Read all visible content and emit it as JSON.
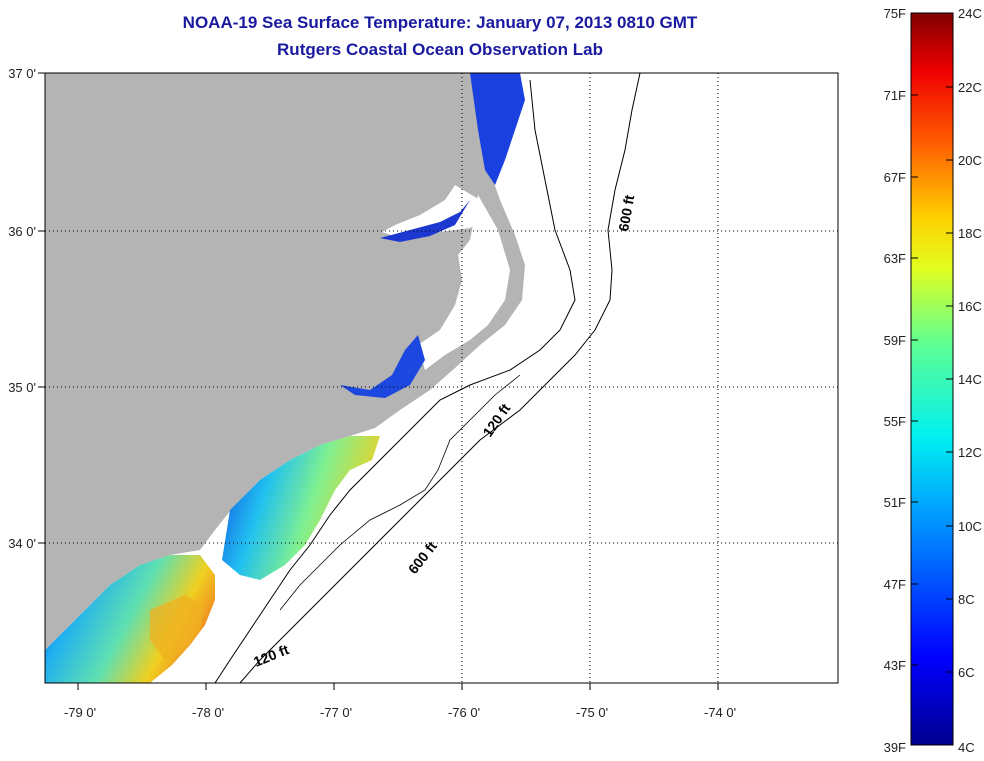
{
  "title": "NOAA-19 Sea Surface Temperature:  January 07, 2013 0810 GMT",
  "subtitle": "Rutgers Coastal Ocean Observation Lab",
  "lat_labels": [
    "37 0'",
    "36 0'",
    "35 0'",
    "34 0'"
  ],
  "lon_labels": [
    "-79 0'",
    "-78 0'",
    "-77 0'",
    "-76 0'",
    "-75 0'",
    "-74 0'"
  ],
  "isobaths": [
    "600 ft",
    "120 ft",
    "600 ft",
    "120 ft"
  ],
  "colorbar": {
    "fahrenheit": [
      "75F",
      "71F",
      "67F",
      "63F",
      "59F",
      "55F",
      "51F",
      "47F",
      "43F",
      "39F"
    ],
    "celsius": [
      "24C",
      "22C",
      "20C",
      "18C",
      "16C",
      "14C",
      "12C",
      "10C",
      "8C",
      "6C",
      "4C"
    ]
  },
  "colors": {
    "land": "#b4b4b4",
    "title": "#1a1aa0",
    "cold": "#0a1aa8",
    "mid": "#1aa0f0",
    "warm": "#f0d020"
  }
}
